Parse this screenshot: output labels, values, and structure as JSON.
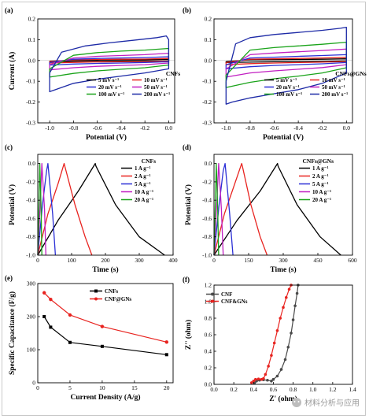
{
  "panels": [
    {
      "id": "a",
      "letter": "(a)",
      "type": "line",
      "xlabel": "Potential (V)",
      "ylabel": "Current (A)",
      "xlim": [
        -1.1,
        0.05
      ],
      "ylim": [
        -0.3,
        0.2
      ],
      "xticks": [
        -1.0,
        -0.8,
        -0.6,
        -0.4,
        -0.2,
        0.0
      ],
      "xtick_labels": [
        "-1.0",
        "-0.8",
        "-0.6",
        "-0.4",
        "-0.2",
        "0.0"
      ],
      "yticks": [
        -0.3,
        -0.2,
        -0.1,
        0.0,
        0.1,
        0.2
      ],
      "ytick_labels": [
        "-0.3",
        "-0.2",
        "-0.1",
        "0.0",
        "0.1",
        "0.2"
      ],
      "legend_title": "CNFs",
      "legend_cols": 2,
      "legend_position": "bottom-right",
      "series": [
        {
          "name": "5  mV s⁻¹",
          "color": "#000000",
          "x": [
            -1.0,
            -0.8,
            -0.6,
            -0.4,
            -0.2,
            0.0,
            0.0,
            -0.2,
            -0.4,
            -0.6,
            -0.8,
            -1.0,
            -1.0
          ],
          "y": [
            -0.003,
            0.001,
            0.002,
            0.003,
            0.004,
            0.006,
            -0.001,
            -0.002,
            -0.003,
            -0.004,
            -0.005,
            -0.006,
            -0.003
          ]
        },
        {
          "name": "10 mV s⁻¹",
          "color": "#e8231f",
          "x": [
            -1.0,
            -0.8,
            -0.6,
            -0.4,
            -0.2,
            0.0,
            0.0,
            -0.2,
            -0.4,
            -0.6,
            -0.8,
            -1.0,
            -1.0
          ],
          "y": [
            -0.005,
            0.003,
            0.005,
            0.006,
            0.007,
            0.01,
            -0.003,
            -0.005,
            -0.006,
            -0.007,
            -0.009,
            -0.012,
            -0.005
          ]
        },
        {
          "name": "20 mV s⁻¹",
          "color": "#2b2fd6",
          "x": [
            -1.0,
            -0.8,
            -0.6,
            -0.4,
            -0.2,
            0.0,
            0.0,
            -0.2,
            -0.4,
            -0.6,
            -0.8,
            -1.0,
            -1.0
          ],
          "y": [
            -0.01,
            0.006,
            0.01,
            0.012,
            0.014,
            0.018,
            -0.006,
            -0.01,
            -0.012,
            -0.014,
            -0.017,
            -0.022,
            -0.01
          ]
        },
        {
          "name": "50 mV s⁻¹",
          "color": "#c11fc1",
          "x": [
            -1.0,
            -0.8,
            -0.6,
            -0.4,
            -0.2,
            0.0,
            0.0,
            -0.2,
            -0.4,
            -0.6,
            -0.8,
            -1.0,
            -1.0
          ],
          "y": [
            -0.02,
            0.012,
            0.02,
            0.024,
            0.028,
            0.035,
            -0.012,
            -0.02,
            -0.024,
            -0.028,
            -0.035,
            -0.045,
            -0.02
          ]
        },
        {
          "name": "100 mV s⁻¹",
          "color": "#1aa31a",
          "x": [
            -1.0,
            -0.8,
            -0.6,
            -0.4,
            -0.2,
            0.0,
            0.0,
            -0.2,
            -0.4,
            -0.6,
            -0.8,
            -1.0,
            -1.0
          ],
          "y": [
            -0.04,
            0.025,
            0.038,
            0.045,
            0.05,
            0.058,
            -0.022,
            -0.035,
            -0.042,
            -0.05,
            -0.062,
            -0.08,
            -0.04
          ]
        },
        {
          "name": "200 mV s⁻¹",
          "color": "#1d2aa6",
          "x": [
            -1.0,
            -0.9,
            -0.7,
            -0.5,
            -0.3,
            -0.1,
            -0.02,
            0.0,
            0.0,
            -0.2,
            -0.4,
            -0.6,
            -0.8,
            -0.95,
            -1.0,
            -1.0
          ],
          "y": [
            -0.06,
            0.04,
            0.07,
            0.085,
            0.097,
            0.11,
            0.118,
            0.1,
            -0.04,
            -0.06,
            -0.075,
            -0.09,
            -0.11,
            -0.14,
            -0.15,
            -0.06
          ]
        }
      ]
    },
    {
      "id": "b",
      "letter": "(b)",
      "type": "line",
      "xlabel": "Potential (V)",
      "ylabel": "",
      "xlim": [
        -1.1,
        0.05
      ],
      "ylim": [
        -0.3,
        0.2
      ],
      "xticks": [
        -1.0,
        -0.8,
        -0.6,
        -0.4,
        -0.2,
        0.0
      ],
      "xtick_labels": [
        "-1.0",
        "-0.8",
        "-0.6",
        "-0.4",
        "-0.2",
        "0.0"
      ],
      "yticks": [
        -0.3,
        -0.2,
        -0.1,
        0.0,
        0.1,
        0.2
      ],
      "ytick_labels": [
        "-0.3",
        "-0.2",
        "-0.1",
        "0.0",
        "0.1",
        "0.2"
      ],
      "legend_title": "CNFs@GNs",
      "legend_cols": 2,
      "legend_position": "bottom-right",
      "series": [
        {
          "name": "5  mV s⁻¹",
          "color": "#000000",
          "x": [
            -1.0,
            -0.8,
            -0.6,
            -0.4,
            -0.2,
            0.0,
            0.0,
            -0.2,
            -0.4,
            -0.6,
            -0.8,
            -1.0,
            -1.0
          ],
          "y": [
            -0.005,
            0.003,
            0.004,
            0.005,
            0.006,
            0.008,
            -0.002,
            -0.004,
            -0.005,
            -0.006,
            -0.008,
            -0.01,
            -0.005
          ]
        },
        {
          "name": "10 mV s⁻¹",
          "color": "#e8231f",
          "x": [
            -1.0,
            -0.8,
            -0.6,
            -0.4,
            -0.2,
            0.0,
            0.0,
            -0.2,
            -0.4,
            -0.6,
            -0.8,
            -1.0,
            -1.0
          ],
          "y": [
            -0.01,
            0.006,
            0.008,
            0.01,
            0.012,
            0.015,
            -0.005,
            -0.008,
            -0.01,
            -0.012,
            -0.015,
            -0.02,
            -0.01
          ]
        },
        {
          "name": "20 mV s⁻¹",
          "color": "#2b2fd6",
          "x": [
            -1.0,
            -0.8,
            -0.6,
            -0.4,
            -0.2,
            0.0,
            0.0,
            -0.2,
            -0.4,
            -0.6,
            -0.8,
            -1.0,
            -1.0
          ],
          "y": [
            -0.02,
            0.012,
            0.016,
            0.02,
            0.024,
            0.028,
            -0.01,
            -0.016,
            -0.02,
            -0.024,
            -0.03,
            -0.04,
            -0.02
          ]
        },
        {
          "name": "50 mV s⁻¹",
          "color": "#c11fc1",
          "x": [
            -1.0,
            -0.8,
            -0.6,
            -0.4,
            -0.2,
            0.0,
            0.0,
            -0.2,
            -0.4,
            -0.6,
            -0.8,
            -1.0,
            -1.0
          ],
          "y": [
            -0.04,
            0.028,
            0.036,
            0.042,
            0.048,
            0.055,
            -0.02,
            -0.034,
            -0.042,
            -0.05,
            -0.06,
            -0.08,
            -0.04
          ]
        },
        {
          "name": "100 mV s⁻¹",
          "color": "#1aa31a",
          "x": [
            -1.0,
            -0.8,
            -0.6,
            -0.4,
            -0.2,
            0.0,
            0.0,
            -0.2,
            -0.4,
            -0.6,
            -0.8,
            -1.0,
            -1.0
          ],
          "y": [
            -0.07,
            0.05,
            0.062,
            0.07,
            0.078,
            0.088,
            -0.035,
            -0.06,
            -0.075,
            -0.088,
            -0.105,
            -0.13,
            -0.07
          ]
        },
        {
          "name": "200 mV s⁻¹",
          "color": "#1d2aa6",
          "x": [
            -1.0,
            -0.92,
            -0.8,
            -0.6,
            -0.4,
            -0.2,
            -0.05,
            0.0,
            0.0,
            -0.2,
            -0.4,
            -0.6,
            -0.8,
            -0.95,
            -1.0,
            -1.0
          ],
          "y": [
            -0.1,
            0.08,
            0.11,
            0.125,
            0.135,
            0.145,
            0.155,
            0.16,
            -0.06,
            -0.11,
            -0.14,
            -0.16,
            -0.18,
            -0.2,
            -0.21,
            -0.1
          ]
        }
      ]
    },
    {
      "id": "c",
      "letter": "(c)",
      "type": "line",
      "xlabel": "Time (s)",
      "ylabel": "Potential (V)",
      "xlim": [
        0,
        400
      ],
      "ylim": [
        -1.0,
        0.1
      ],
      "xticks": [
        0,
        100,
        200,
        300,
        400
      ],
      "xtick_labels": [
        "0",
        "100",
        "200",
        "300",
        "400"
      ],
      "yticks": [
        -1.0,
        -0.8,
        -0.6,
        -0.4,
        -0.2,
        0.0
      ],
      "ytick_labels": [
        "-1.0",
        "-0.8",
        "-0.6",
        "-0.4",
        "-0.2",
        "0.0"
      ],
      "legend_title": "CNFs",
      "legend_cols": 1,
      "legend_position": "top-right",
      "series": [
        {
          "name": "1 A g⁻¹",
          "color": "#000000",
          "x": [
            0,
            60,
            120,
            170,
            172,
            230,
            300,
            375
          ],
          "y": [
            -1.0,
            -0.62,
            -0.3,
            0.0,
            -0.03,
            -0.45,
            -0.8,
            -1.0
          ]
        },
        {
          "name": "2 A g⁻¹",
          "color": "#e8231f",
          "x": [
            0,
            30,
            60,
            78,
            80,
            110,
            140,
            160
          ],
          "y": [
            -1.0,
            -0.55,
            -0.22,
            0.0,
            -0.03,
            -0.45,
            -0.8,
            -1.0
          ]
        },
        {
          "name": "5 A g⁻¹",
          "color": "#2b2fd6",
          "x": [
            0,
            14,
            26,
            30,
            44,
            52
          ],
          "y": [
            -1.0,
            -0.45,
            -0.08,
            0.0,
            -0.55,
            -1.0
          ]
        },
        {
          "name": "10 A g⁻¹",
          "color": "#c11fc1",
          "x": [
            0,
            8,
            12,
            20,
            24
          ],
          "y": [
            -1.0,
            -0.4,
            0.0,
            -0.5,
            -1.0
          ]
        },
        {
          "name": "20 A g⁻¹",
          "color": "#1aa31a",
          "x": [
            0,
            4,
            6,
            10,
            12
          ],
          "y": [
            -1.0,
            -0.4,
            0.0,
            -0.5,
            -1.0
          ]
        }
      ]
    },
    {
      "id": "d",
      "letter": "(d)",
      "type": "line",
      "xlabel": "Time (s)",
      "ylabel": "Potential (V)",
      "xlim": [
        0,
        600
      ],
      "ylim": [
        -1.0,
        0.1
      ],
      "xticks": [
        0,
        150,
        300,
        450,
        600
      ],
      "xtick_labels": [
        "0",
        "150",
        "300",
        "450",
        "600"
      ],
      "yticks": [
        -1.0,
        -0.8,
        -0.6,
        -0.4,
        -0.2,
        0.0
      ],
      "ytick_labels": [
        "-1.0",
        "-0.8",
        "-0.6",
        "-0.4",
        "-0.2",
        "0.0"
      ],
      "legend_title": "CNFs@GNs",
      "legend_cols": 1,
      "legend_position": "top-right",
      "series": [
        {
          "name": "1 A g⁻¹",
          "color": "#000000",
          "x": [
            0,
            100,
            200,
            275,
            278,
            360,
            460,
            550
          ],
          "y": [
            -1.0,
            -0.62,
            -0.3,
            0.0,
            -0.03,
            -0.45,
            -0.8,
            -1.0
          ]
        },
        {
          "name": "2 A g⁻¹",
          "color": "#e8231f",
          "x": [
            0,
            45,
            90,
            120,
            123,
            160,
            200,
            230
          ],
          "y": [
            -1.0,
            -0.55,
            -0.22,
            0.0,
            -0.03,
            -0.45,
            -0.8,
            -1.0
          ]
        },
        {
          "name": "5 A g⁻¹",
          "color": "#2b2fd6",
          "x": [
            0,
            22,
            40,
            48,
            68,
            82
          ],
          "y": [
            -1.0,
            -0.45,
            -0.08,
            0.0,
            -0.55,
            -1.0
          ]
        },
        {
          "name": "10 A g⁻¹",
          "color": "#c11fc1",
          "x": [
            0,
            13,
            20,
            32,
            40
          ],
          "y": [
            -1.0,
            -0.4,
            0.0,
            -0.5,
            -1.0
          ]
        },
        {
          "name": "20 A g⁻¹",
          "color": "#1aa31a",
          "x": [
            0,
            6,
            10,
            16,
            20
          ],
          "y": [
            -1.0,
            -0.4,
            0.0,
            -0.5,
            -1.0
          ]
        }
      ]
    },
    {
      "id": "e",
      "letter": "(e)",
      "type": "line",
      "xlabel": "Current Density (A/g)",
      "ylabel": "Specific Capacitance (F/g)",
      "xlim": [
        0,
        21
      ],
      "ylim": [
        0,
        300
      ],
      "xticks": [
        0,
        5,
        10,
        15,
        20
      ],
      "xtick_labels": [
        "0",
        "5",
        "10",
        "15",
        "20"
      ],
      "yticks": [
        0,
        100,
        200,
        300
      ],
      "ytick_labels": [
        "0",
        "100",
        "200",
        "300"
      ],
      "legend_title": "",
      "legend_cols": 1,
      "legend_position": "top-right",
      "series": [
        {
          "name": "CNFs",
          "color": "#000000",
          "marker": "square",
          "x": [
            1,
            2,
            5,
            10,
            20
          ],
          "y": [
            200,
            168,
            122,
            110,
            85
          ]
        },
        {
          "name": "CNF@GNs",
          "color": "#e8231f",
          "marker": "circle",
          "x": [
            1,
            2,
            5,
            10,
            20
          ],
          "y": [
            272,
            252,
            205,
            170,
            123
          ]
        }
      ]
    },
    {
      "id": "f",
      "letter": "(f)",
      "type": "line",
      "xlabel": "Z' (ohm)",
      "ylabel": "Z'' (ohm)",
      "xlim": [
        0,
        1.4
      ],
      "ylim": [
        0,
        1.2
      ],
      "xticks": [
        0.0,
        0.2,
        0.4,
        0.6,
        0.8,
        1.0,
        1.2,
        1.4
      ],
      "xtick_labels": [
        "0.0",
        "0.2",
        "0.4",
        "0.6",
        "0.8",
        "1.0",
        "1.2",
        "1.4"
      ],
      "yticks": [
        0.0,
        0.2,
        0.4,
        0.6,
        0.8,
        1.0,
        1.2
      ],
      "ytick_labels": [
        "0.0",
        "0.2",
        "0.4",
        "0.6",
        "0.8",
        "1.0",
        "1.2"
      ],
      "legend_title": "",
      "legend_cols": 1,
      "legend_position": "top-left",
      "series": [
        {
          "name": "CNF",
          "color": "#4a4a4a",
          "marker": "circle",
          "x": [
            0.41,
            0.43,
            0.46,
            0.5,
            0.54,
            0.58,
            0.6,
            0.64,
            0.68,
            0.72,
            0.75,
            0.78,
            0.8,
            0.82,
            0.84,
            0.85
          ],
          "y": [
            0.02,
            0.04,
            0.05,
            0.055,
            0.05,
            0.04,
            0.06,
            0.1,
            0.18,
            0.3,
            0.45,
            0.62,
            0.78,
            0.95,
            1.1,
            1.2
          ]
        },
        {
          "name": "CNF&GNs",
          "color": "#e8231f",
          "marker": "circle",
          "x": [
            0.38,
            0.4,
            0.42,
            0.45,
            0.48,
            0.5,
            0.52,
            0.55,
            0.58,
            0.61,
            0.64,
            0.67,
            0.7,
            0.73,
            0.76,
            0.78
          ],
          "y": [
            0.02,
            0.04,
            0.06,
            0.065,
            0.06,
            0.07,
            0.12,
            0.22,
            0.35,
            0.5,
            0.65,
            0.8,
            0.93,
            1.05,
            1.15,
            1.2
          ]
        }
      ]
    }
  ],
  "watermark": "材料分析与应用",
  "watermark_icon": "wechat-icon"
}
